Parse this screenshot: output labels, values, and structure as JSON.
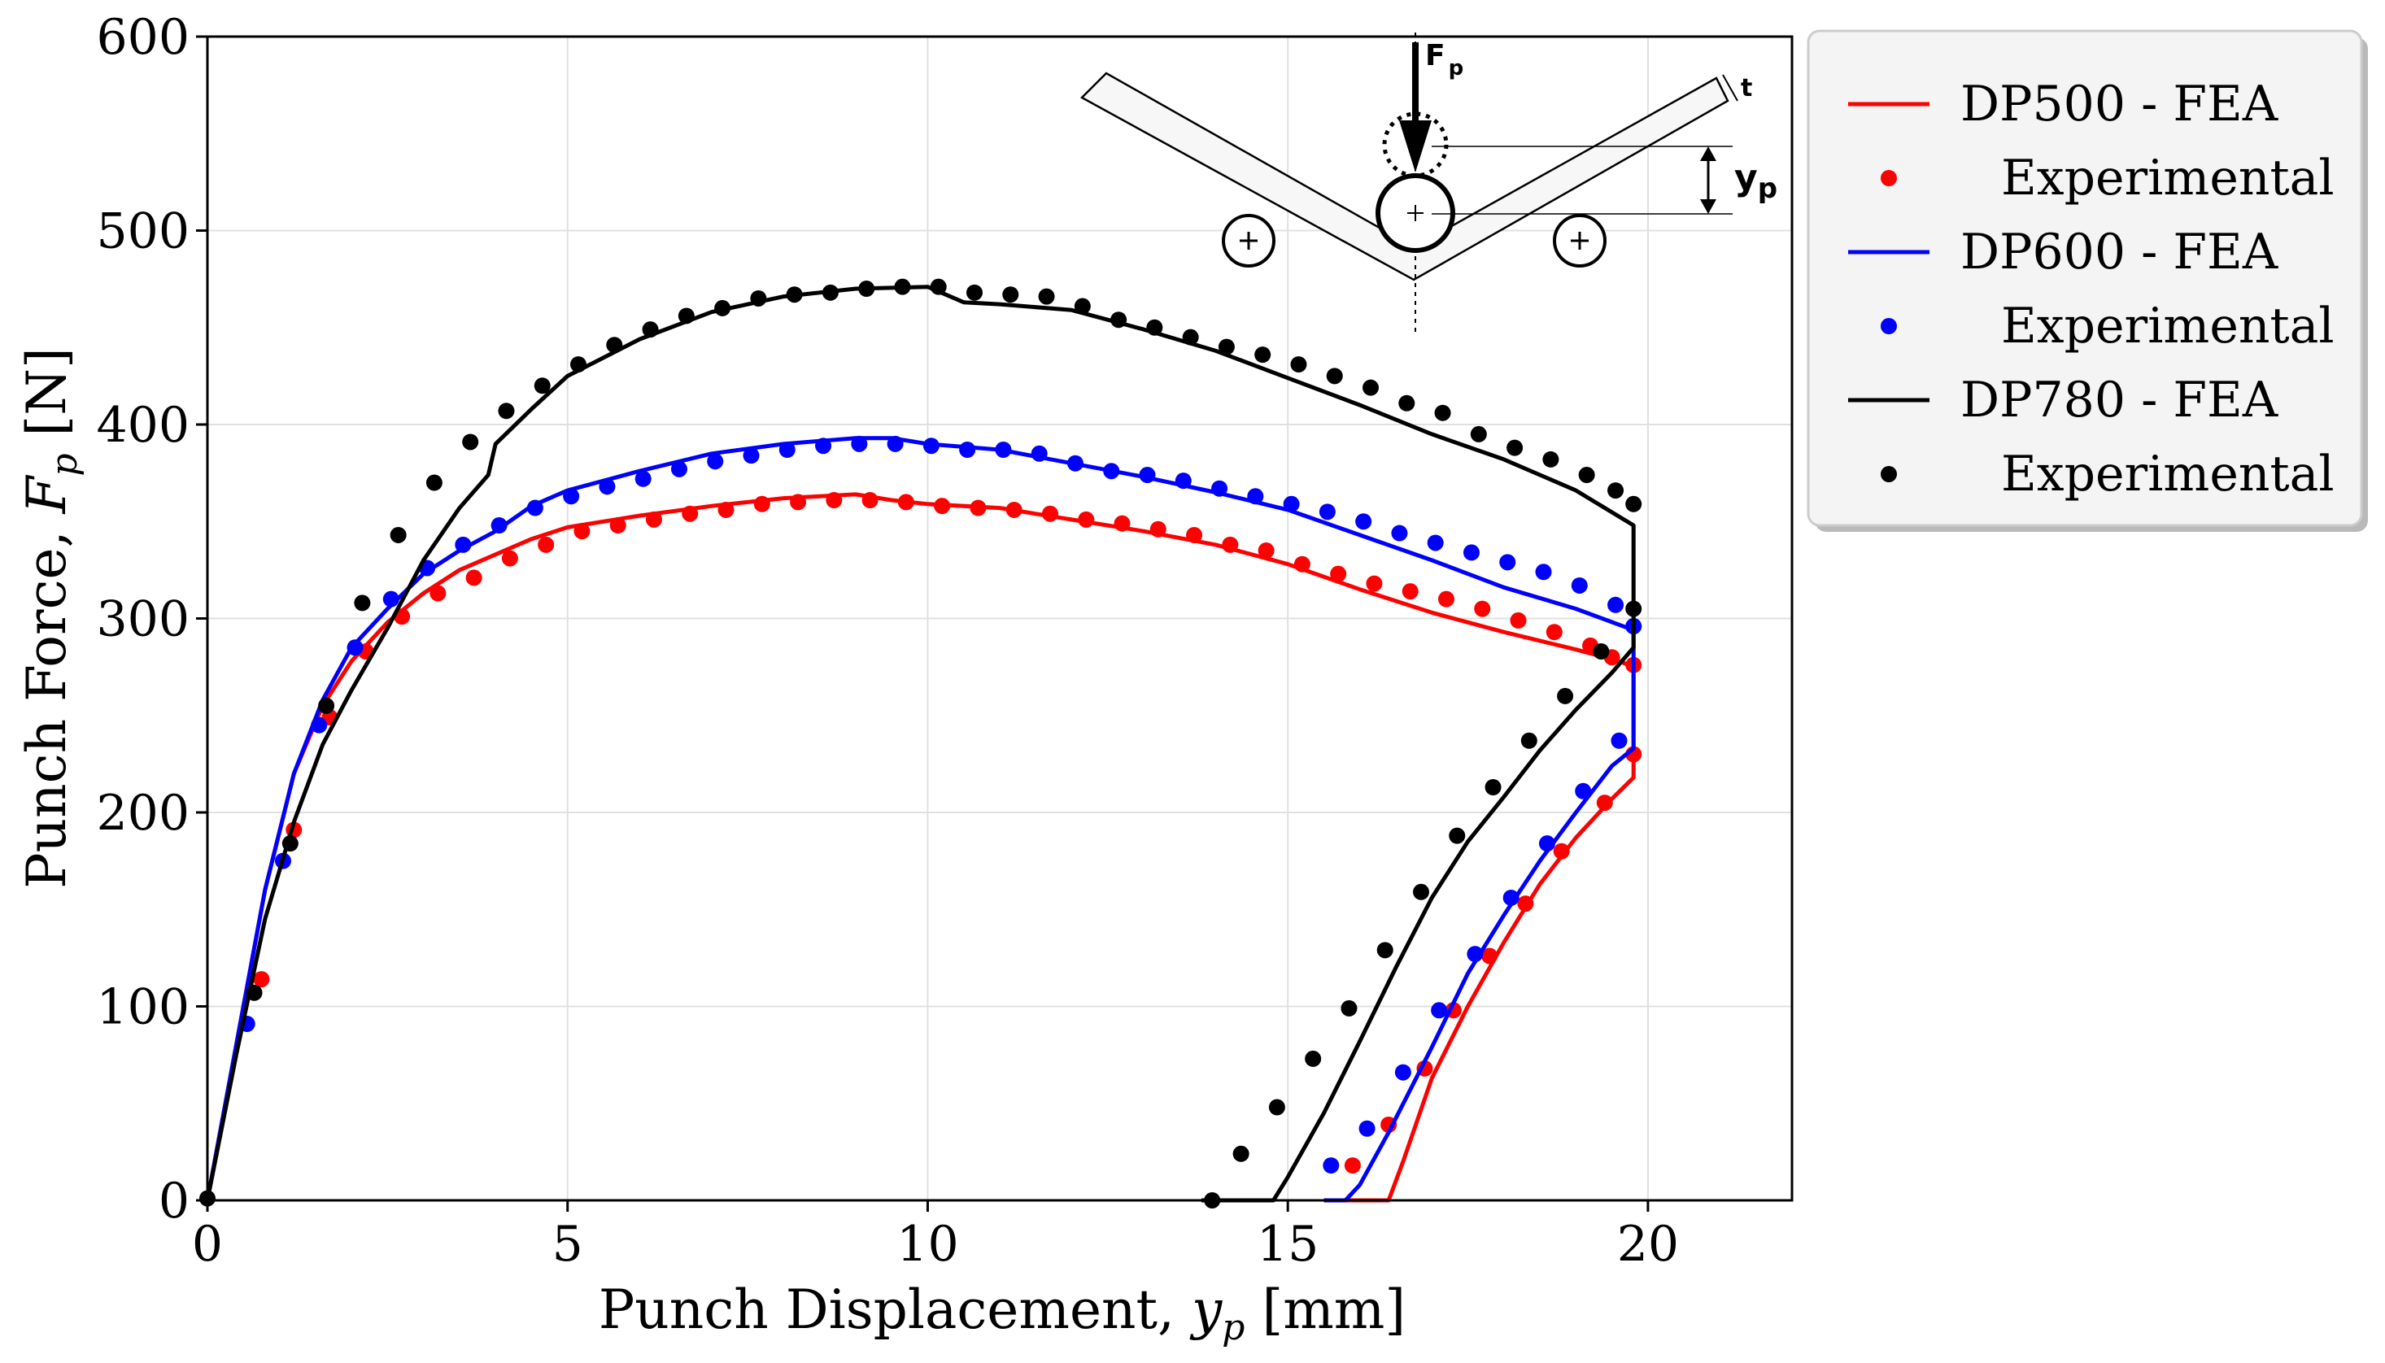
{
  "chart_data": {
    "type": "line",
    "title": "",
    "xlabel": "Punch Displacement, y_p [mm]",
    "xlabel_parts": {
      "prefix": "Punch Displacement, ",
      "var": "y",
      "sub": "p",
      "suffix": " [mm]"
    },
    "ylabel": "Punch Force, F_p [N]",
    "ylabel_parts": {
      "prefix": "Punch Force, ",
      "var": "F",
      "sub": "p",
      "suffix": " [N]"
    },
    "xlim": [
      0,
      22
    ],
    "ylim": [
      0,
      600
    ],
    "xticks": [
      0,
      5,
      10,
      15,
      20
    ],
    "yticks": [
      0,
      100,
      200,
      300,
      400,
      500,
      600
    ],
    "grid": true,
    "legend_position": "outside-top-right",
    "legend": [
      "DP500 - FEA",
      "Experimental",
      "DP600 - FEA",
      "Experimental",
      "DP780 - FEA",
      "Experimental"
    ],
    "series": [
      {
        "name": "DP500 - FEA",
        "kind": "line",
        "color": "#ff0000",
        "points": [
          [
            0,
            0
          ],
          [
            0.4,
            80
          ],
          [
            0.8,
            160
          ],
          [
            1.2,
            220
          ],
          [
            1.6,
            255
          ],
          [
            2,
            278
          ],
          [
            2.5,
            298
          ],
          [
            3,
            313
          ],
          [
            3.5,
            325
          ],
          [
            4,
            333
          ],
          [
            4.5,
            341
          ],
          [
            5,
            347
          ],
          [
            6,
            353
          ],
          [
            7,
            358
          ],
          [
            8,
            362
          ],
          [
            9,
            364
          ],
          [
            9.5,
            361
          ],
          [
            10,
            359
          ],
          [
            11,
            357
          ],
          [
            12,
            351
          ],
          [
            13,
            345
          ],
          [
            14,
            338
          ],
          [
            15,
            328
          ],
          [
            16,
            315
          ],
          [
            17,
            303
          ],
          [
            18,
            293
          ],
          [
            19,
            284
          ],
          [
            19.6,
            278
          ],
          [
            19.8,
            275
          ],
          [
            19.8,
            218
          ],
          [
            19.5,
            207
          ],
          [
            19,
            187
          ],
          [
            18.5,
            163
          ],
          [
            18,
            133
          ],
          [
            17.5,
            100
          ],
          [
            17,
            63
          ],
          [
            16.6,
            20
          ],
          [
            16.4,
            0
          ],
          [
            15.7,
            0
          ]
        ]
      },
      {
        "name": "Experimental (DP500)",
        "kind": "markers",
        "color": "#ff0000",
        "points": [
          [
            0.75,
            114
          ],
          [
            1.2,
            191
          ],
          [
            1.7,
            249
          ],
          [
            2.2,
            283
          ],
          [
            2.7,
            301
          ],
          [
            3.2,
            313
          ],
          [
            3.7,
            321
          ],
          [
            4.2,
            331
          ],
          [
            4.7,
            338
          ],
          [
            5.2,
            345
          ],
          [
            5.7,
            348
          ],
          [
            6.2,
            351
          ],
          [
            6.7,
            354
          ],
          [
            7.2,
            356
          ],
          [
            7.7,
            359
          ],
          [
            8.2,
            360
          ],
          [
            8.7,
            361
          ],
          [
            9.2,
            361
          ],
          [
            9.7,
            360
          ],
          [
            10.2,
            358
          ],
          [
            10.7,
            357
          ],
          [
            11.2,
            356
          ],
          [
            11.7,
            354
          ],
          [
            12.2,
            351
          ],
          [
            12.7,
            349
          ],
          [
            13.2,
            346
          ],
          [
            13.7,
            343
          ],
          [
            14.2,
            338
          ],
          [
            14.7,
            335
          ],
          [
            15.2,
            328
          ],
          [
            15.7,
            323
          ],
          [
            16.2,
            318
          ],
          [
            16.7,
            314
          ],
          [
            17.2,
            310
          ],
          [
            17.7,
            305
          ],
          [
            18.2,
            299
          ],
          [
            18.7,
            293
          ],
          [
            19.2,
            286
          ],
          [
            19.5,
            280
          ],
          [
            19.8,
            276
          ],
          [
            19.8,
            230
          ],
          [
            19.4,
            205
          ],
          [
            18.8,
            180
          ],
          [
            18.3,
            153
          ],
          [
            17.8,
            126
          ],
          [
            17.3,
            98
          ],
          [
            16.9,
            68
          ],
          [
            16.4,
            39
          ],
          [
            15.9,
            18
          ]
        ]
      },
      {
        "name": "DP600 - FEA",
        "kind": "line",
        "color": "#0000ff",
        "points": [
          [
            0,
            0
          ],
          [
            0.4,
            80
          ],
          [
            0.8,
            160
          ],
          [
            1.2,
            220
          ],
          [
            1.6,
            258
          ],
          [
            2,
            285
          ],
          [
            2.5,
            305
          ],
          [
            3,
            323
          ],
          [
            3.5,
            335
          ],
          [
            4,
            345
          ],
          [
            4.5,
            358
          ],
          [
            5,
            366
          ],
          [
            6,
            376
          ],
          [
            7,
            385
          ],
          [
            8,
            390
          ],
          [
            9,
            393
          ],
          [
            9.5,
            393
          ],
          [
            10,
            390
          ],
          [
            11,
            387
          ],
          [
            12,
            380
          ],
          [
            13,
            373
          ],
          [
            14,
            365
          ],
          [
            15,
            356
          ],
          [
            16,
            343
          ],
          [
            17,
            330
          ],
          [
            18,
            316
          ],
          [
            19,
            305
          ],
          [
            19.8,
            294
          ],
          [
            19.8,
            233
          ],
          [
            19.5,
            224
          ],
          [
            19,
            200
          ],
          [
            18.5,
            175
          ],
          [
            18,
            147
          ],
          [
            17.5,
            117
          ],
          [
            17,
            79
          ],
          [
            16.4,
            35
          ],
          [
            16,
            8
          ],
          [
            15.8,
            0
          ],
          [
            15.5,
            0
          ]
        ]
      },
      {
        "name": "Experimental (DP600)",
        "kind": "markers",
        "color": "#0000ff",
        "points": [
          [
            0.55,
            91
          ],
          [
            1.05,
            175
          ],
          [
            1.55,
            245
          ],
          [
            2.05,
            285
          ],
          [
            2.55,
            310
          ],
          [
            3.05,
            326
          ],
          [
            3.55,
            338
          ],
          [
            4.05,
            348
          ],
          [
            4.55,
            357
          ],
          [
            5.05,
            363
          ],
          [
            5.55,
            368
          ],
          [
            6.05,
            372
          ],
          [
            6.55,
            377
          ],
          [
            7.05,
            381
          ],
          [
            7.55,
            384
          ],
          [
            8.05,
            387
          ],
          [
            8.55,
            389
          ],
          [
            9.05,
            390
          ],
          [
            9.55,
            390
          ],
          [
            10.05,
            389
          ],
          [
            10.55,
            387
          ],
          [
            11.05,
            387
          ],
          [
            11.55,
            385
          ],
          [
            12.05,
            380
          ],
          [
            12.55,
            376
          ],
          [
            13.05,
            374
          ],
          [
            13.55,
            371
          ],
          [
            14.05,
            367
          ],
          [
            14.55,
            363
          ],
          [
            15.05,
            359
          ],
          [
            15.55,
            355
          ],
          [
            16.05,
            350
          ],
          [
            16.55,
            344
          ],
          [
            17.05,
            339
          ],
          [
            17.55,
            334
          ],
          [
            18.05,
            329
          ],
          [
            18.55,
            324
          ],
          [
            19.05,
            317
          ],
          [
            19.55,
            307
          ],
          [
            19.8,
            296
          ],
          [
            19.8,
            296
          ],
          [
            19.6,
            237
          ],
          [
            19.1,
            211
          ],
          [
            18.6,
            184
          ],
          [
            18.1,
            156
          ],
          [
            17.6,
            127
          ],
          [
            17.1,
            98
          ],
          [
            16.6,
            66
          ],
          [
            16.1,
            37
          ],
          [
            15.6,
            18
          ]
        ]
      },
      {
        "name": "DP780 - FEA",
        "kind": "line",
        "color": "#000000",
        "points": [
          [
            0,
            0
          ],
          [
            0.4,
            75
          ],
          [
            0.8,
            145
          ],
          [
            1.2,
            195
          ],
          [
            1.6,
            235
          ],
          [
            2,
            263
          ],
          [
            2.5,
            295
          ],
          [
            3,
            330
          ],
          [
            3.5,
            357
          ],
          [
            3.9,
            374
          ],
          [
            4,
            390
          ],
          [
            4.5,
            408
          ],
          [
            5,
            425
          ],
          [
            6,
            444
          ],
          [
            7,
            458
          ],
          [
            8,
            466
          ],
          [
            9,
            470
          ],
          [
            10,
            471
          ],
          [
            10.5,
            463
          ],
          [
            11,
            462
          ],
          [
            12,
            459
          ],
          [
            13,
            449
          ],
          [
            14,
            438
          ],
          [
            15,
            424
          ],
          [
            16,
            410
          ],
          [
            17,
            395
          ],
          [
            18,
            382
          ],
          [
            19,
            366
          ],
          [
            19.8,
            348
          ],
          [
            19.8,
            285
          ],
          [
            19.5,
            272
          ],
          [
            19,
            253
          ],
          [
            18.5,
            232
          ],
          [
            18,
            208
          ],
          [
            17.5,
            185
          ],
          [
            17,
            156
          ],
          [
            16.5,
            120
          ],
          [
            16,
            82
          ],
          [
            15.5,
            45
          ],
          [
            15,
            12
          ],
          [
            14.8,
            0
          ],
          [
            13.8,
            0
          ]
        ]
      },
      {
        "name": "Experimental (DP780)",
        "kind": "markers",
        "color": "#000000",
        "points": [
          [
            0,
            1
          ],
          [
            0.65,
            107
          ],
          [
            1.15,
            184
          ],
          [
            1.65,
            255
          ],
          [
            2.15,
            308
          ],
          [
            2.65,
            343
          ],
          [
            3.15,
            370
          ],
          [
            3.65,
            391
          ],
          [
            4.15,
            407
          ],
          [
            4.65,
            420
          ],
          [
            5.15,
            431
          ],
          [
            5.65,
            441
          ],
          [
            6.15,
            449
          ],
          [
            6.65,
            456
          ],
          [
            7.15,
            460
          ],
          [
            7.65,
            465
          ],
          [
            8.15,
            467
          ],
          [
            8.65,
            468
          ],
          [
            9.15,
            470
          ],
          [
            9.65,
            471
          ],
          [
            10.15,
            471
          ],
          [
            10.65,
            468
          ],
          [
            11.15,
            467
          ],
          [
            11.65,
            466
          ],
          [
            12.15,
            461
          ],
          [
            12.65,
            454
          ],
          [
            13.15,
            450
          ],
          [
            13.65,
            445
          ],
          [
            14.15,
            440
          ],
          [
            14.65,
            436
          ],
          [
            15.15,
            431
          ],
          [
            15.65,
            425
          ],
          [
            16.15,
            419
          ],
          [
            16.65,
            411
          ],
          [
            17.15,
            406
          ],
          [
            17.65,
            395
          ],
          [
            18.15,
            388
          ],
          [
            18.65,
            382
          ],
          [
            19.15,
            374
          ],
          [
            19.55,
            366
          ],
          [
            19.8,
            359
          ],
          [
            19.8,
            305
          ],
          [
            19.35,
            283
          ],
          [
            18.85,
            260
          ],
          [
            18.35,
            237
          ],
          [
            17.85,
            213
          ],
          [
            17.35,
            188
          ],
          [
            16.85,
            159
          ],
          [
            16.35,
            129
          ],
          [
            15.85,
            99
          ],
          [
            15.35,
            73
          ],
          [
            14.85,
            48
          ],
          [
            14.35,
            24
          ],
          [
            13.95,
            0
          ]
        ]
      }
    ]
  },
  "inset": {
    "force_label": "F",
    "force_sub": "p",
    "thickness_label": "t",
    "displacement_label": "y",
    "displacement_sub": "p"
  }
}
